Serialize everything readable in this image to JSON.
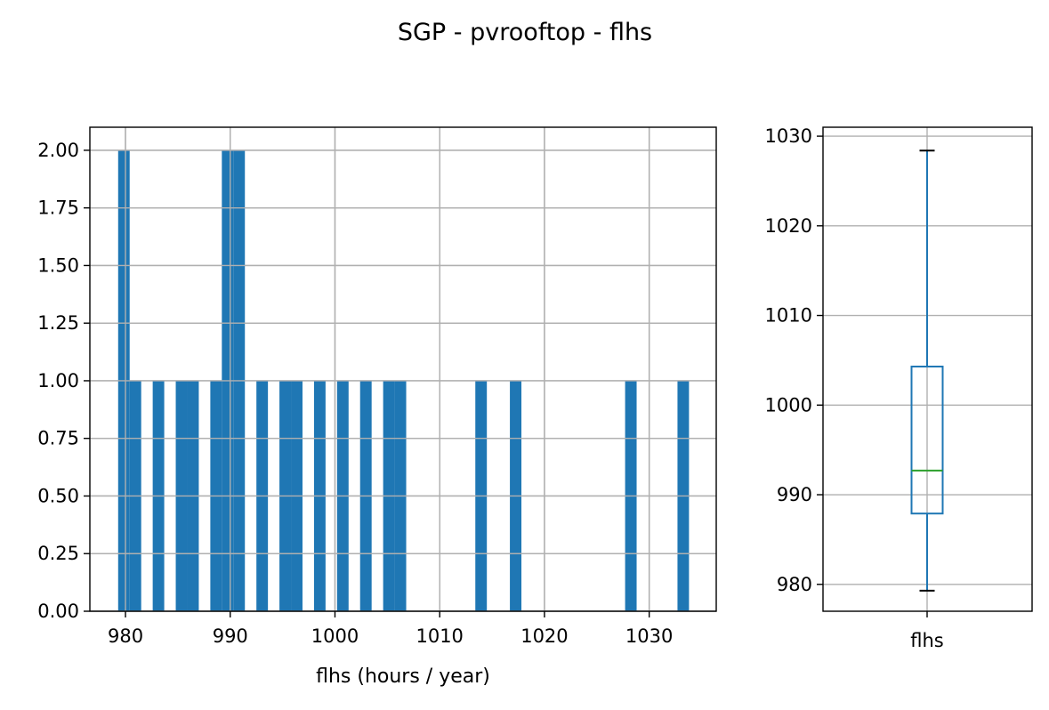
{
  "title": "SGP - pvrooftop - flhs",
  "colors": {
    "bar": "#1f77b4",
    "box": "#1f77b4",
    "median": "#2ca02c",
    "grid": "#b0b0b0",
    "axes": "#000000"
  },
  "chart_data": [
    {
      "type": "bar",
      "name": "histogram",
      "xlabel": "flhs (hours / year)",
      "ylabel": "",
      "xlim": [
        976.6,
        1036.4
      ],
      "ylim": [
        0,
        2.1
      ],
      "grid": true,
      "xticks": [
        980,
        990,
        1000,
        1010,
        1020,
        1030
      ],
      "xtick_labels": [
        "980",
        "990",
        "1000",
        "1010",
        "1020",
        "1030"
      ],
      "yticks": [
        0,
        0.25,
        0.5,
        0.75,
        1.0,
        1.25,
        1.5,
        1.75,
        2.0
      ],
      "ytick_labels": [
        "0.00",
        "0.25",
        "0.50",
        "0.75",
        "1.00",
        "1.25",
        "1.50",
        "1.75",
        "2.00"
      ],
      "bins": [
        {
          "x0": 979.3,
          "x1": 980.4,
          "count": 2
        },
        {
          "x0": 980.4,
          "x1": 981.5,
          "count": 1
        },
        {
          "x0": 982.6,
          "x1": 983.7,
          "count": 1
        },
        {
          "x0": 984.8,
          "x1": 985.9,
          "count": 1
        },
        {
          "x0": 985.9,
          "x1": 987.0,
          "count": 1
        },
        {
          "x0": 988.1,
          "x1": 989.2,
          "count": 1
        },
        {
          "x0": 989.2,
          "x1": 990.3,
          "count": 2
        },
        {
          "x0": 990.3,
          "x1": 991.4,
          "count": 2
        },
        {
          "x0": 992.5,
          "x1": 993.6,
          "count": 1
        },
        {
          "x0": 994.7,
          "x1": 995.8,
          "count": 1
        },
        {
          "x0": 995.8,
          "x1": 996.9,
          "count": 1
        },
        {
          "x0": 998.0,
          "x1": 999.1,
          "count": 1
        },
        {
          "x0": 1000.2,
          "x1": 1001.3,
          "count": 1
        },
        {
          "x0": 1002.4,
          "x1": 1003.5,
          "count": 1
        },
        {
          "x0": 1004.6,
          "x1": 1005.7,
          "count": 1
        },
        {
          "x0": 1005.7,
          "x1": 1006.8,
          "count": 1
        },
        {
          "x0": 1013.4,
          "x1": 1014.5,
          "count": 1
        },
        {
          "x0": 1016.7,
          "x1": 1017.8,
          "count": 1
        },
        {
          "x0": 1027.7,
          "x1": 1028.8,
          "count": 1
        },
        {
          "x0": 1032.7,
          "x1": 1033.8,
          "count": 1
        }
      ]
    },
    {
      "type": "box",
      "name": "boxplot",
      "category": "flhs",
      "ylim": [
        977.0,
        1031.0
      ],
      "grid": true,
      "yticks": [
        980,
        990,
        1000,
        1010,
        1020,
        1030
      ],
      "ytick_labels": [
        "980",
        "990",
        "1000",
        "1010",
        "1020",
        "1030"
      ],
      "whisker_low": 979.3,
      "q1": 987.9,
      "median": 992.7,
      "q3": 1004.3,
      "whisker_high": 1028.4
    }
  ]
}
